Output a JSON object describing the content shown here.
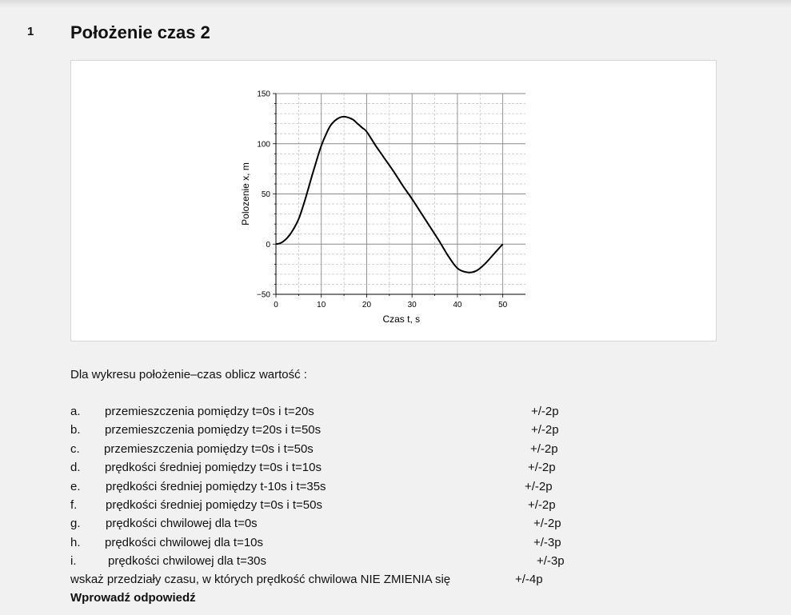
{
  "question": {
    "number": "1",
    "title": "Położenie czas 2"
  },
  "chart_data": {
    "type": "line",
    "title": "",
    "xlabel": "Czas t, s",
    "ylabel": "Polozenie x, m",
    "xlim": [
      0,
      55
    ],
    "ylim": [
      -50,
      150
    ],
    "x_ticks": [
      "0",
      "10",
      "20",
      "30",
      "40",
      "50"
    ],
    "y_ticks": [
      "150",
      "100",
      "50",
      "0",
      "−50"
    ],
    "grid": true,
    "series": [
      {
        "x": [
          0,
          1,
          2,
          3,
          4,
          5,
          6,
          7,
          8,
          9,
          10,
          11,
          12,
          13,
          14,
          15,
          16,
          17,
          18,
          19,
          20,
          22,
          24,
          26,
          28,
          30,
          32,
          34,
          36,
          38,
          40,
          42,
          44,
          46,
          48,
          50
        ],
        "y": [
          0,
          1,
          4,
          9,
          16,
          25,
          38,
          53,
          69,
          84,
          98,
          109,
          118,
          123,
          126,
          127,
          126,
          124,
          120,
          116,
          112,
          98,
          85,
          72,
          58,
          45,
          31,
          17,
          3,
          -12,
          -24,
          -28,
          -27,
          -20,
          -10,
          0
        ]
      }
    ]
  },
  "instructions": {
    "intro": "Dla wykresu położenie–czas  oblicz wartość :",
    "tasks": [
      {
        "letter": "a.",
        "text": "przemieszczenia pomiędzy t=0s i t=20s",
        "points": "+/-2p"
      },
      {
        "letter": "b.",
        "text": "przemieszczenia pomiędzy t=20s i t=50s",
        "points": "+/-2p"
      },
      {
        "letter": "c.",
        "text": "przemieszczenia pomiędzy t=0s i t=50s",
        "points": "+/-2p"
      },
      {
        "letter": "d.",
        "text": "prędkości średniej pomiędzy t=0s i t=10s",
        "points": "+/-2p"
      },
      {
        "letter": "e.",
        "text": "prędkości średniej pomiędzy t-10s i t=35s",
        "points": "+/-2p"
      },
      {
        "letter": "f.",
        "text": "prędkości średniej pomiędzy t=0s i t=50s",
        "points": "+/-2p"
      },
      {
        "letter": "g.",
        "text": "prędkości chwilowej dla t=0s",
        "points": "+/-2p"
      },
      {
        "letter": "h.",
        "text": "prędkości chwilowej dla t=10s",
        "points": "+/-3p"
      },
      {
        "letter": "i.",
        "text": "prędkości chwilowej dla t=30s",
        "points": "+/-3p"
      }
    ],
    "final_task": "wskaż przedziały czasu, w których prędkość chwilowa NIE ZMIENIA się",
    "final_points": "+/-4p",
    "answer_prompt": "Wprowadź odpowiedź"
  }
}
